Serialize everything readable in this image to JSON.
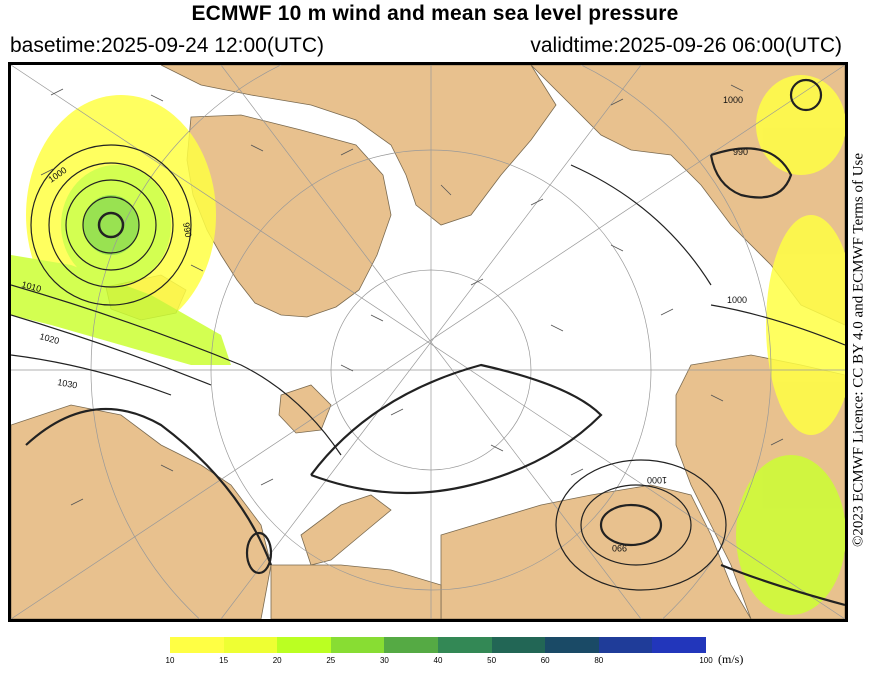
{
  "header": {
    "title": "ECMWF 10 m wind and mean sea level pressure",
    "basetime": "basetime:2025-09-24 12:00(UTC)",
    "validtime": "validtime:2025-09-26 06:00(UTC)"
  },
  "map": {
    "land_color": "#e8c18e",
    "sea_color": "#ffffff",
    "isobar_labels": [
      "1000",
      "990",
      "1010",
      "1020",
      "1030",
      "1000",
      "990",
      "1000",
      "1000",
      "990"
    ]
  },
  "licence": "©2023 ECMWF Licence: CC BY 4.0 and ECMWF Terms of Use",
  "colorbar": {
    "unit": "(m/s)",
    "ticks": [
      "10",
      "15",
      "20",
      "25",
      "30",
      "40",
      "50",
      "60",
      "80",
      "100"
    ],
    "colors": [
      "#ffff44",
      "#eeff33",
      "#bbff22",
      "#88dd33",
      "#55aa44",
      "#338855",
      "#226655",
      "#1a4a66",
      "#1f3c99",
      "#2236bb"
    ]
  }
}
